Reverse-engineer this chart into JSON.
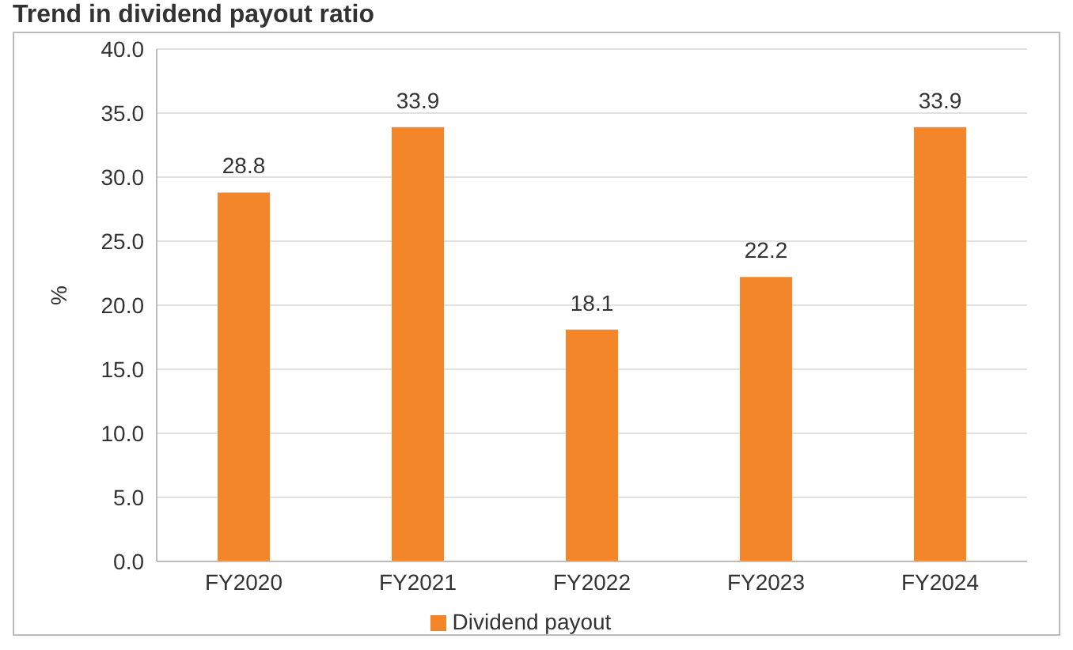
{
  "chart_data": {
    "type": "bar",
    "title": "Trend in dividend payout ratio",
    "ylabel": "%",
    "categories": [
      "FY2020",
      "FY2021",
      "FY2022",
      "FY2023",
      "FY2024"
    ],
    "series": [
      {
        "name": "Dividend payout",
        "color": "#f4862a",
        "values": [
          28.8,
          33.9,
          18.1,
          22.2,
          33.9
        ]
      }
    ],
    "ylim": [
      0,
      40
    ],
    "yticks": [
      {
        "value": 0,
        "label": "0.0"
      },
      {
        "value": 5,
        "label": "5.0"
      },
      {
        "value": 10,
        "label": "10.0"
      },
      {
        "value": 15,
        "label": "15.0"
      },
      {
        "value": 20,
        "label": "20.0"
      },
      {
        "value": 25,
        "label": "25.0"
      },
      {
        "value": 30,
        "label": "30.0"
      },
      {
        "value": 35,
        "label": "35.0"
      },
      {
        "value": 40,
        "label": "40.0"
      }
    ],
    "grid": "y",
    "legend": "bottom",
    "data_labels": true
  }
}
